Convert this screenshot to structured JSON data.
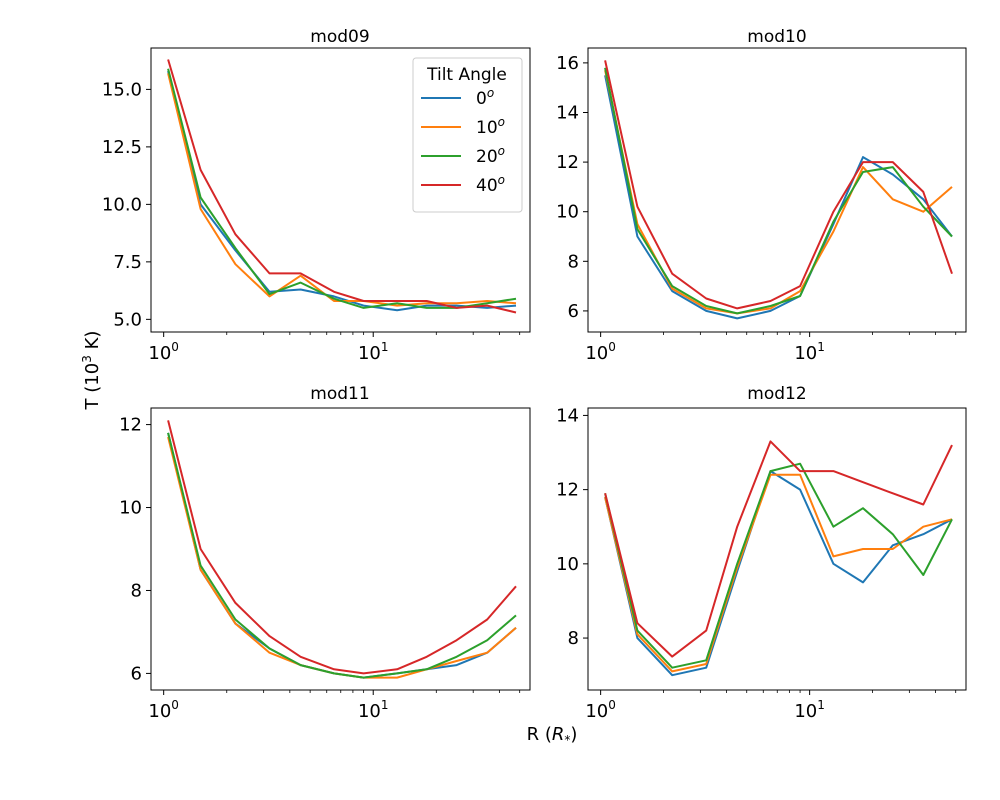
{
  "figure": {
    "xlabel": "R (",
    "xlabel_unit": "R",
    "xlabel_sub": "*",
    "xlabel_close": ")",
    "ylabel_pre": "T (10",
    "ylabel_exp": "3",
    "ylabel_post": " K)"
  },
  "legend": {
    "title": "Tilt Angle",
    "entries": [
      {
        "base": "0",
        "sup": "o",
        "color": "#1f77b4"
      },
      {
        "base": "10",
        "sup": "o",
        "color": "#ff7f0e"
      },
      {
        "base": "20",
        "sup": "o",
        "color": "#2ca02c"
      },
      {
        "base": "40",
        "sup": "o",
        "color": "#d62728"
      }
    ]
  },
  "x_ticks": [
    {
      "value": 1,
      "base": "10",
      "exp": "0"
    },
    {
      "value": 10,
      "base": "10",
      "exp": "1"
    }
  ],
  "chart_data": [
    {
      "type": "line",
      "title": "mod09",
      "xscale": "log",
      "xlim": [
        0.87,
        56
      ],
      "ylim": [
        4.45,
        16.8
      ],
      "yticks": [
        "5.0",
        "7.5",
        "10.0",
        "12.5",
        "15.0"
      ],
      "ytick_values": [
        5.0,
        7.5,
        10.0,
        12.5,
        15.0
      ],
      "x": [
        1.05,
        1.5,
        2.2,
        3.2,
        4.5,
        6.5,
        9,
        13,
        18,
        25,
        35,
        48
      ],
      "series": [
        {
          "name": "0°",
          "color": "#1f77b4",
          "values": [
            15.8,
            10.0,
            8.0,
            6.2,
            6.3,
            6.0,
            5.6,
            5.4,
            5.6,
            5.6,
            5.5,
            5.6
          ]
        },
        {
          "name": "10°",
          "color": "#ff7f0e",
          "values": [
            15.7,
            9.8,
            7.4,
            6.0,
            6.9,
            5.8,
            5.8,
            5.6,
            5.7,
            5.7,
            5.8,
            5.7
          ]
        },
        {
          "name": "20°",
          "color": "#2ca02c",
          "values": [
            15.9,
            10.3,
            8.1,
            6.1,
            6.6,
            5.9,
            5.5,
            5.7,
            5.5,
            5.5,
            5.7,
            5.9
          ]
        },
        {
          "name": "40°",
          "color": "#d62728",
          "values": [
            16.3,
            11.5,
            8.7,
            7.0,
            7.0,
            6.2,
            5.8,
            5.8,
            5.8,
            5.5,
            5.6,
            5.3
          ]
        }
      ]
    },
    {
      "type": "line",
      "title": "mod10",
      "xscale": "log",
      "xlim": [
        0.87,
        56
      ],
      "ylim": [
        5.15,
        16.6
      ],
      "yticks": [
        "6",
        "8",
        "10",
        "12",
        "14",
        "16"
      ],
      "ytick_values": [
        6,
        8,
        10,
        12,
        14,
        16
      ],
      "x": [
        1.05,
        1.5,
        2.2,
        3.2,
        4.5,
        6.5,
        9,
        13,
        18,
        25,
        35,
        48
      ],
      "series": [
        {
          "name": "0°",
          "color": "#1f77b4",
          "values": [
            15.5,
            9.0,
            6.8,
            6.0,
            5.7,
            6.0,
            6.6,
            9.5,
            12.2,
            11.5,
            10.5,
            9.0
          ]
        },
        {
          "name": "10°",
          "color": "#ff7f0e",
          "values": [
            15.7,
            9.5,
            6.9,
            6.1,
            5.9,
            6.1,
            6.8,
            9.2,
            11.8,
            10.5,
            10.0,
            11.0
          ]
        },
        {
          "name": "20°",
          "color": "#2ca02c",
          "values": [
            15.8,
            9.3,
            7.0,
            6.2,
            5.9,
            6.2,
            6.6,
            9.6,
            11.6,
            11.8,
            10.2,
            9.0
          ]
        },
        {
          "name": "40°",
          "color": "#d62728",
          "values": [
            16.1,
            10.2,
            7.5,
            6.5,
            6.1,
            6.4,
            7.0,
            10.0,
            12.0,
            12.0,
            10.8,
            7.5
          ]
        }
      ]
    },
    {
      "type": "line",
      "title": "mod11",
      "xscale": "log",
      "xlim": [
        0.87,
        56
      ],
      "ylim": [
        5.6,
        12.4
      ],
      "yticks": [
        "6",
        "8",
        "10",
        "12"
      ],
      "ytick_values": [
        6,
        8,
        10,
        12
      ],
      "x": [
        1.05,
        1.5,
        2.2,
        3.2,
        4.5,
        6.5,
        9,
        13,
        18,
        25,
        35,
        48
      ],
      "series": [
        {
          "name": "0°",
          "color": "#1f77b4",
          "values": [
            11.8,
            8.5,
            7.2,
            6.6,
            6.2,
            6.0,
            5.9,
            6.0,
            6.1,
            6.2,
            6.5,
            7.1
          ]
        },
        {
          "name": "10°",
          "color": "#ff7f0e",
          "values": [
            11.7,
            8.5,
            7.2,
            6.5,
            6.2,
            6.0,
            5.9,
            5.9,
            6.1,
            6.3,
            6.5,
            7.1
          ]
        },
        {
          "name": "20°",
          "color": "#2ca02c",
          "values": [
            11.8,
            8.6,
            7.3,
            6.6,
            6.2,
            6.0,
            5.9,
            6.0,
            6.1,
            6.4,
            6.8,
            7.4
          ]
        },
        {
          "name": "40°",
          "color": "#d62728",
          "values": [
            12.1,
            9.0,
            7.7,
            6.9,
            6.4,
            6.1,
            6.0,
            6.1,
            6.4,
            6.8,
            7.3,
            8.1
          ]
        }
      ]
    },
    {
      "type": "line",
      "title": "mod12",
      "xscale": "log",
      "xlim": [
        0.87,
        56
      ],
      "ylim": [
        6.6,
        14.2
      ],
      "yticks": [
        "8",
        "10",
        "12",
        "14"
      ],
      "ytick_values": [
        8,
        10,
        12,
        14
      ],
      "x": [
        1.05,
        1.5,
        2.2,
        3.2,
        4.5,
        6.5,
        9,
        13,
        18,
        25,
        35,
        48
      ],
      "series": [
        {
          "name": "0°",
          "color": "#1f77b4",
          "values": [
            11.8,
            8.0,
            7.0,
            7.2,
            9.8,
            12.5,
            12.0,
            10.0,
            9.5,
            10.5,
            10.8,
            11.2
          ]
        },
        {
          "name": "10°",
          "color": "#ff7f0e",
          "values": [
            11.8,
            8.1,
            7.1,
            7.3,
            9.9,
            12.4,
            12.4,
            10.2,
            10.4,
            10.4,
            11.0,
            11.2
          ]
        },
        {
          "name": "20°",
          "color": "#2ca02c",
          "values": [
            11.9,
            8.2,
            7.2,
            7.4,
            10.0,
            12.5,
            12.7,
            11.0,
            11.5,
            10.8,
            9.7,
            11.2
          ]
        },
        {
          "name": "40°",
          "color": "#d62728",
          "values": [
            11.9,
            8.4,
            7.5,
            8.2,
            11.0,
            13.3,
            12.5,
            12.5,
            12.2,
            11.9,
            11.6,
            13.2
          ]
        }
      ]
    }
  ]
}
